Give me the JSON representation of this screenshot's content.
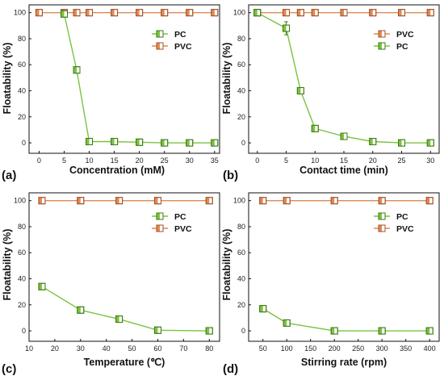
{
  "figure": {
    "colors": {
      "PC": "#7dc242",
      "PC_edge": "#3d7a12",
      "PVC": "#e08a52",
      "PVC_edge": "#a0522d",
      "frame": "#111111"
    }
  },
  "chart_data": [
    {
      "type": "line",
      "panel_label": "(a)",
      "xlabel": "Concentration (mM)",
      "ylabel": "Floatability (%)",
      "xlim": [
        -2,
        36
      ],
      "ylim": [
        -8,
        106
      ],
      "xticks": [
        0,
        5,
        10,
        15,
        20,
        25,
        30,
        35
      ],
      "yticks": [
        0,
        20,
        40,
        60,
        80,
        100
      ],
      "legend_position": "right",
      "series": [
        {
          "name": "PC",
          "x": [
            5,
            7.5,
            10,
            15,
            20,
            25,
            30,
            35
          ],
          "y": [
            99,
            56,
            1,
            1,
            0.5,
            0,
            0,
            0
          ]
        },
        {
          "name": "PVC",
          "x": [
            0,
            5,
            7.5,
            10,
            15,
            20,
            25,
            30,
            35
          ],
          "y": [
            100,
            100,
            100,
            100,
            100,
            100,
            100,
            100,
            100
          ]
        }
      ]
    },
    {
      "type": "line",
      "panel_label": "(b)",
      "xlabel": "Contact time (min)",
      "ylabel": "Floatability (%)",
      "xlim": [
        -1.5,
        31.5
      ],
      "ylim": [
        -8,
        106
      ],
      "xticks": [
        0,
        5,
        10,
        15,
        20,
        25,
        30
      ],
      "yticks": [
        0,
        20,
        40,
        60,
        80,
        100
      ],
      "legend_position": "right",
      "series": [
        {
          "name": "PC",
          "x": [
            0,
            5,
            7.5,
            10,
            15,
            20,
            25,
            30
          ],
          "y": [
            100,
            88,
            40,
            11,
            5,
            1,
            0,
            0
          ],
          "error": [
            0,
            5,
            0,
            0,
            0,
            0,
            0,
            0
          ]
        },
        {
          "name": "PVC",
          "x": [
            0,
            5,
            7.5,
            10,
            15,
            20,
            25,
            30
          ],
          "y": [
            100,
            100,
            100,
            100,
            100,
            100,
            100,
            100
          ]
        }
      ]
    },
    {
      "type": "line",
      "panel_label": "(c)",
      "xlabel": "Temperature (℃)",
      "ylabel": "Floatability (%)",
      "xlim": [
        10,
        84
      ],
      "ylim": [
        -8,
        106
      ],
      "xticks": [
        10,
        20,
        30,
        40,
        50,
        60,
        70,
        80
      ],
      "yticks": [
        0,
        20,
        40,
        60,
        80,
        100
      ],
      "legend_position": "right",
      "series": [
        {
          "name": "PC",
          "x": [
            15,
            30,
            45,
            60,
            80
          ],
          "y": [
            34,
            16,
            9,
            0.5,
            0
          ]
        },
        {
          "name": "PVC",
          "x": [
            15,
            30,
            45,
            60,
            80
          ],
          "y": [
            100,
            100,
            100,
            100,
            100
          ]
        }
      ]
    },
    {
      "type": "line",
      "panel_label": "(d)",
      "xlabel": "Stirring rate (rpm)",
      "ylabel": "Floatability (%)",
      "xlim": [
        20,
        420
      ],
      "ylim": [
        -8,
        106
      ],
      "xticks": [
        50,
        100,
        150,
        200,
        250,
        300,
        350,
        400
      ],
      "yticks": [
        0,
        20,
        40,
        60,
        80,
        100
      ],
      "legend_position": "right",
      "series": [
        {
          "name": "PC",
          "x": [
            50,
            100,
            200,
            300,
            400
          ],
          "y": [
            17,
            6,
            0,
            0,
            0
          ]
        },
        {
          "name": "PVC",
          "x": [
            50,
            100,
            200,
            300,
            400
          ],
          "y": [
            100,
            100,
            100,
            100,
            100
          ]
        }
      ]
    }
  ]
}
